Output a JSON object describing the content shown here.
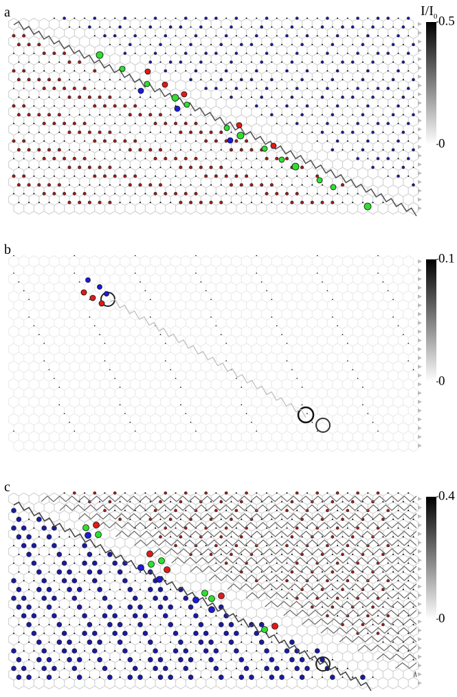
{
  "chart_data": [
    {
      "type": "current-map",
      "panel_label": "a",
      "colorbar_title": "I/I",
      "colorbar_title_sub": "0",
      "clim": [
        0,
        0.5
      ],
      "cticks": [
        0,
        0.5
      ]
    },
    {
      "type": "current-map",
      "panel_label": "b",
      "clim": [
        0,
        0.1
      ],
      "cticks": [
        0,
        0.1
      ]
    },
    {
      "type": "current-map",
      "panel_label": "c",
      "clim": [
        0,
        0.4
      ],
      "cticks": [
        0,
        0.4
      ]
    }
  ]
}
